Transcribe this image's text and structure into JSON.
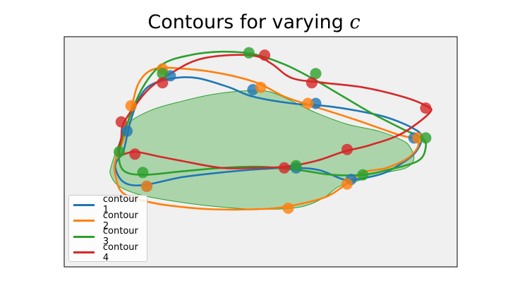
{
  "chart_data": {
    "type": "line",
    "title": "Contours for varying c",
    "title_prefix": "Contours for varying ",
    "title_var": "c",
    "xlabel": "",
    "ylabel": "",
    "xlim": [
      0,
      1
    ],
    "ylim": [
      0,
      1
    ],
    "axis_ticks": "none",
    "grid": false,
    "background": "#f0f0f0",
    "legend": {
      "placement": "lower-left"
    },
    "region": {
      "color": "#2ca02c",
      "outline": [
        [
          0.12,
          0.44
        ],
        [
          0.14,
          0.54
        ],
        [
          0.16,
          0.62
        ],
        [
          0.22,
          0.68
        ],
        [
          0.3,
          0.72
        ],
        [
          0.38,
          0.75
        ],
        [
          0.46,
          0.765
        ],
        [
          0.52,
          0.762
        ],
        [
          0.58,
          0.72
        ],
        [
          0.64,
          0.67
        ],
        [
          0.72,
          0.62
        ],
        [
          0.8,
          0.59
        ],
        [
          0.86,
          0.55
        ],
        [
          0.88,
          0.52
        ],
        [
          0.89,
          0.47
        ],
        [
          0.87,
          0.43
        ],
        [
          0.82,
          0.41
        ],
        [
          0.76,
          0.38
        ],
        [
          0.7,
          0.35
        ],
        [
          0.66,
          0.3
        ],
        [
          0.6,
          0.26
        ],
        [
          0.5,
          0.25
        ],
        [
          0.4,
          0.26
        ],
        [
          0.3,
          0.28
        ],
        [
          0.2,
          0.31
        ],
        [
          0.14,
          0.35
        ],
        [
          0.118,
          0.4
        ]
      ]
    },
    "series": [
      {
        "name": "contour 1",
        "color": "#1f77b4",
        "curve": [
          [
            0.15,
            0.5
          ],
          [
            0.16,
            0.57
          ],
          [
            0.17,
            0.64
          ],
          [
            0.19,
            0.73
          ],
          [
            0.22,
            0.79
          ],
          [
            0.28,
            0.82
          ],
          [
            0.34,
            0.82
          ],
          [
            0.42,
            0.78
          ],
          [
            0.48,
            0.74
          ],
          [
            0.58,
            0.71
          ],
          [
            0.66,
            0.7
          ],
          [
            0.74,
            0.68
          ],
          [
            0.82,
            0.65
          ],
          [
            0.89,
            0.6
          ],
          [
            0.91,
            0.56
          ],
          [
            0.89,
            0.49
          ],
          [
            0.84,
            0.43
          ],
          [
            0.8,
            0.4
          ],
          [
            0.74,
            0.38
          ],
          [
            0.71,
            0.38
          ],
          [
            0.65,
            0.42
          ],
          [
            0.59,
            0.43
          ],
          [
            0.5,
            0.425
          ],
          [
            0.4,
            0.41
          ],
          [
            0.3,
            0.39
          ],
          [
            0.2,
            0.355
          ],
          [
            0.15,
            0.37
          ],
          [
            0.13,
            0.44
          ]
        ],
        "points": [
          [
            0.16,
            0.59
          ],
          [
            0.27,
            0.83
          ],
          [
            0.48,
            0.77
          ],
          [
            0.64,
            0.71
          ],
          [
            0.89,
            0.56
          ],
          [
            0.73,
            0.38
          ],
          [
            0.59,
            0.43
          ],
          [
            0.21,
            0.35
          ]
        ]
      },
      {
        "name": "contour 2",
        "color": "#ff7f0e",
        "curve": [
          [
            0.13,
            0.46
          ],
          [
            0.15,
            0.55
          ],
          [
            0.17,
            0.68
          ],
          [
            0.19,
            0.8
          ],
          [
            0.23,
            0.86
          ],
          [
            0.31,
            0.86
          ],
          [
            0.4,
            0.84
          ],
          [
            0.49,
            0.8
          ],
          [
            0.56,
            0.74
          ],
          [
            0.63,
            0.7
          ],
          [
            0.74,
            0.64
          ],
          [
            0.84,
            0.58
          ],
          [
            0.9,
            0.545
          ],
          [
            0.88,
            0.48
          ],
          [
            0.82,
            0.43
          ],
          [
            0.76,
            0.41
          ],
          [
            0.71,
            0.35
          ],
          [
            0.66,
            0.3
          ],
          [
            0.56,
            0.26
          ],
          [
            0.48,
            0.25
          ],
          [
            0.38,
            0.25
          ],
          [
            0.3,
            0.26
          ],
          [
            0.22,
            0.28
          ],
          [
            0.15,
            0.32
          ],
          [
            0.13,
            0.4
          ]
        ],
        "points": [
          [
            0.17,
            0.7
          ],
          [
            0.25,
            0.86
          ],
          [
            0.5,
            0.78
          ],
          [
            0.62,
            0.71
          ],
          [
            0.9,
            0.56
          ],
          [
            0.72,
            0.36
          ],
          [
            0.57,
            0.255
          ],
          [
            0.21,
            0.35
          ]
        ]
      },
      {
        "name": "contour 3",
        "color": "#2ca02c",
        "curve": [
          [
            0.14,
            0.5
          ],
          [
            0.16,
            0.62
          ],
          [
            0.2,
            0.78
          ],
          [
            0.25,
            0.88
          ],
          [
            0.32,
            0.92
          ],
          [
            0.4,
            0.935
          ],
          [
            0.48,
            0.925
          ],
          [
            0.56,
            0.88
          ],
          [
            0.63,
            0.82
          ],
          [
            0.7,
            0.75
          ],
          [
            0.78,
            0.67
          ],
          [
            0.86,
            0.6
          ],
          [
            0.91,
            0.56
          ],
          [
            0.92,
            0.52
          ],
          [
            0.9,
            0.46
          ],
          [
            0.82,
            0.42
          ],
          [
            0.76,
            0.4
          ],
          [
            0.68,
            0.4
          ],
          [
            0.6,
            0.42
          ],
          [
            0.5,
            0.435
          ],
          [
            0.4,
            0.43
          ],
          [
            0.3,
            0.415
          ],
          [
            0.2,
            0.4
          ],
          [
            0.15,
            0.42
          ]
        ],
        "points": [
          [
            0.14,
            0.5
          ],
          [
            0.25,
            0.84
          ],
          [
            0.47,
            0.93
          ],
          [
            0.64,
            0.84
          ],
          [
            0.92,
            0.56
          ],
          [
            0.76,
            0.4
          ],
          [
            0.59,
            0.44
          ],
          [
            0.2,
            0.41
          ]
        ]
      },
      {
        "name": "contour 4",
        "color": "#d62728",
        "curve": [
          [
            0.14,
            0.49
          ],
          [
            0.145,
            0.56
          ],
          [
            0.15,
            0.62
          ],
          [
            0.18,
            0.7
          ],
          [
            0.22,
            0.78
          ],
          [
            0.28,
            0.85
          ],
          [
            0.34,
            0.9
          ],
          [
            0.42,
            0.92
          ],
          [
            0.49,
            0.915
          ],
          [
            0.53,
            0.88
          ],
          [
            0.58,
            0.82
          ],
          [
            0.66,
            0.8
          ],
          [
            0.76,
            0.78
          ],
          [
            0.86,
            0.74
          ],
          [
            0.92,
            0.7
          ],
          [
            0.93,
            0.67
          ],
          [
            0.86,
            0.58
          ],
          [
            0.78,
            0.53
          ],
          [
            0.71,
            0.5
          ],
          [
            0.64,
            0.46
          ],
          [
            0.56,
            0.435
          ],
          [
            0.48,
            0.43
          ],
          [
            0.4,
            0.43
          ],
          [
            0.3,
            0.46
          ],
          [
            0.24,
            0.48
          ],
          [
            0.18,
            0.5
          ]
        ],
        "points": [
          [
            0.145,
            0.63
          ],
          [
            0.25,
            0.8
          ],
          [
            0.51,
            0.92
          ],
          [
            0.63,
            0.8
          ],
          [
            0.92,
            0.69
          ],
          [
            0.72,
            0.51
          ],
          [
            0.56,
            0.43
          ],
          [
            0.18,
            0.49
          ]
        ]
      }
    ]
  }
}
